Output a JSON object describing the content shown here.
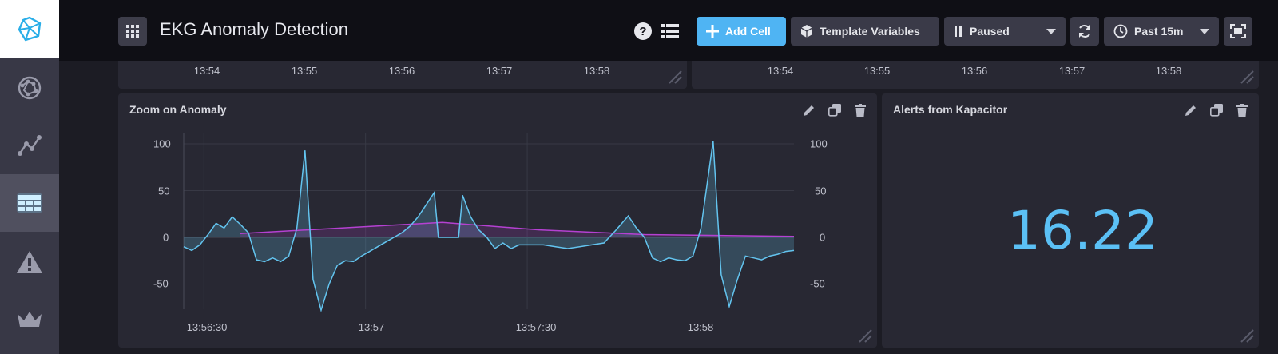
{
  "header": {
    "title": "EKG Anomaly Detection",
    "add_cell_label": "Add Cell",
    "template_variables_label": "Template Variables",
    "refresh_status": "Paused",
    "time_range": "Past 15m"
  },
  "sidebar": {
    "items": [
      {
        "icon": "influx-logo-icon"
      },
      {
        "icon": "host-graph-icon"
      },
      {
        "icon": "data-explorer-icon"
      },
      {
        "icon": "dashboards-icon",
        "active": true
      },
      {
        "icon": "alert-icon"
      },
      {
        "icon": "crown-icon"
      }
    ]
  },
  "top_cells": [
    {
      "x_ticks": [
        "13:54",
        "13:55",
        "13:56",
        "13:57",
        "13:58"
      ]
    },
    {
      "x_ticks": [
        "13:54",
        "13:55",
        "13:56",
        "13:57",
        "13:58"
      ]
    }
  ],
  "zoom_panel": {
    "title": "Zoom on Anomaly"
  },
  "alerts_panel": {
    "title": "Alerts from Kapacitor",
    "value": "16.22"
  },
  "chart_data": {
    "type": "line",
    "y_ticks": [
      "100",
      "50",
      "0",
      "-50"
    ],
    "y2_ticks": [
      "100",
      "50",
      "0",
      "-50"
    ],
    "x_ticks": [
      "13:56:30",
      "13:57",
      "13:57:30",
      "13:58"
    ],
    "ylim": [
      -80,
      105
    ],
    "grid": true,
    "colors": {
      "series1": "#63c4ef",
      "series2": "#b541d2"
    },
    "series": [
      {
        "values": [
          [
            0.0,
            -10
          ],
          [
            0.02,
            -14
          ],
          [
            0.04,
            -8
          ],
          [
            0.06,
            3
          ],
          [
            0.08,
            15
          ],
          [
            0.1,
            10
          ],
          [
            0.12,
            22
          ],
          [
            0.14,
            14
          ],
          [
            0.16,
            5
          ],
          [
            0.18,
            -24
          ],
          [
            0.2,
            -26
          ],
          [
            0.22,
            -22
          ],
          [
            0.24,
            -26
          ],
          [
            0.26,
            -20
          ],
          [
            0.28,
            10
          ],
          [
            0.3,
            93
          ],
          [
            0.32,
            -45
          ],
          [
            0.34,
            -78
          ],
          [
            0.36,
            -50
          ],
          [
            0.38,
            -30
          ],
          [
            0.4,
            -25
          ],
          [
            0.42,
            -26
          ],
          [
            0.44,
            -20
          ],
          [
            0.46,
            -15
          ],
          [
            0.48,
            -10
          ],
          [
            0.5,
            -5
          ],
          [
            0.52,
            0
          ],
          [
            0.54,
            5
          ],
          [
            0.56,
            12
          ],
          [
            0.58,
            22
          ],
          [
            0.6,
            35
          ],
          [
            0.62,
            48
          ],
          [
            0.63,
            0
          ],
          [
            0.66,
            0
          ],
          [
            0.68,
            0
          ],
          [
            0.69,
            45
          ],
          [
            0.71,
            22
          ],
          [
            0.73,
            8
          ],
          [
            0.75,
            0
          ],
          [
            0.77,
            -12
          ],
          [
            0.79,
            -6
          ],
          [
            0.81,
            -12
          ],
          [
            0.83,
            -8
          ],
          [
            0.86,
            -8
          ],
          [
            0.89,
            -8
          ],
          [
            0.92,
            -10
          ],
          [
            0.95,
            -12
          ],
          [
            0.98,
            -10
          ],
          [
            1.01,
            -8
          ],
          [
            1.04,
            -6
          ],
          [
            1.07,
            8
          ],
          [
            1.1,
            23
          ],
          [
            1.12,
            10
          ],
          [
            1.14,
            0
          ],
          [
            1.16,
            -22
          ],
          [
            1.18,
            -26
          ],
          [
            1.2,
            -22
          ],
          [
            1.22,
            -24
          ],
          [
            1.24,
            -25
          ],
          [
            1.26,
            -20
          ],
          [
            1.28,
            10
          ],
          [
            1.31,
            103
          ],
          [
            1.33,
            -40
          ],
          [
            1.35,
            -74
          ],
          [
            1.37,
            -45
          ],
          [
            1.39,
            -20
          ],
          [
            1.41,
            -22
          ],
          [
            1.43,
            -24
          ],
          [
            1.45,
            -20
          ],
          [
            1.47,
            -18
          ],
          [
            1.49,
            -15
          ],
          [
            1.51,
            -14
          ]
        ]
      },
      {
        "values": [
          [
            0.14,
            4
          ],
          [
            0.64,
            16
          ],
          [
            0.88,
            8
          ],
          [
            1.14,
            3
          ],
          [
            1.51,
            1
          ]
        ]
      }
    ]
  }
}
